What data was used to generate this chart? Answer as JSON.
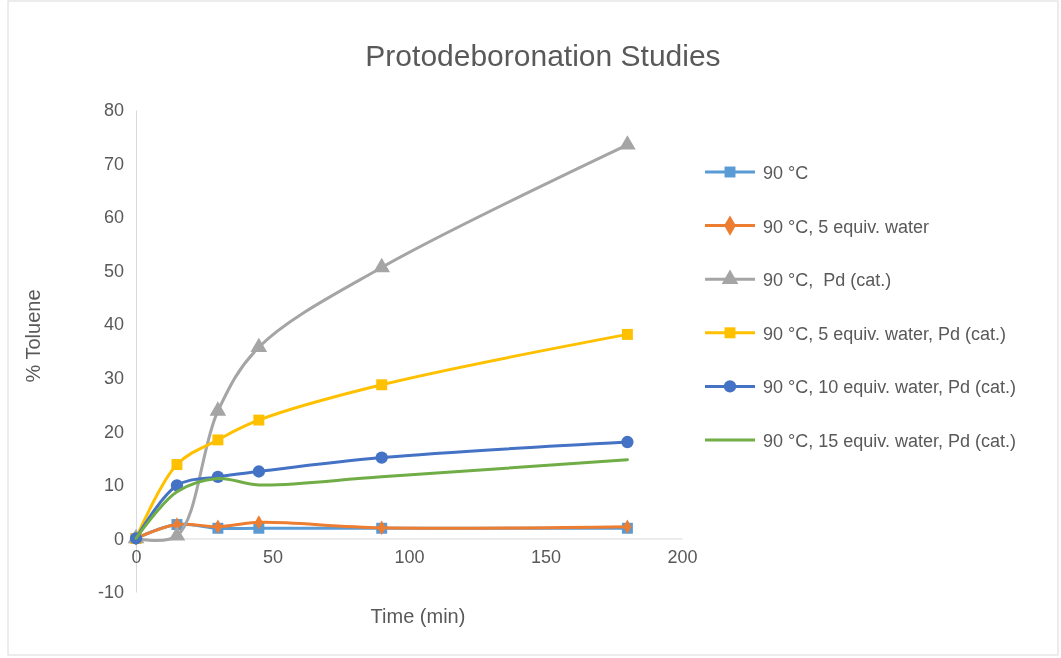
{
  "chart_data": {
    "type": "line",
    "title": "Protodeboronation Studies",
    "xlabel": "Time (min)",
    "ylabel": "% Toluene",
    "x": [
      0,
      15,
      30,
      45,
      90,
      180
    ],
    "xlim": [
      0,
      200
    ],
    "xticks": [
      0,
      50,
      100,
      150,
      200
    ],
    "ylim": [
      -10,
      80
    ],
    "yticks": [
      -10,
      0,
      10,
      20,
      30,
      40,
      50,
      60,
      70,
      80
    ],
    "grid": false,
    "legend": "right",
    "line_style": "solid",
    "series": [
      {
        "name": "90 °C",
        "color": "#5b9bd5",
        "marker": "square",
        "values": [
          0,
          2.6,
          1.9,
          1.9,
          1.9,
          1.9
        ]
      },
      {
        "name": "90 °C, 5 equiv. water",
        "color": "#ed7d31",
        "marker": "diamond",
        "values": [
          0,
          2.6,
          2.2,
          3.0,
          2.0,
          2.2
        ]
      },
      {
        "name": "90 °C,  Pd (cat.)",
        "color": "#a5a5a5",
        "marker": "triangle",
        "values": [
          0,
          0.5,
          23.8,
          35.7,
          50.6,
          73.5
        ]
      },
      {
        "name": "90 °C, 5 equiv. water, Pd (cat.)",
        "color": "#ffc000",
        "marker": "square",
        "values": [
          0,
          13.8,
          18.4,
          22.1,
          28.7,
          38.1
        ]
      },
      {
        "name": "90 °C, 10 equiv. water, Pd (cat.)",
        "color": "#4472c4",
        "marker": "circle",
        "values": [
          0,
          9.9,
          11.5,
          12.5,
          15.1,
          18.0
        ]
      },
      {
        "name": "90 °C, 15 equiv. water, Pd (cat.)",
        "color": "#70ad47",
        "marker": "none",
        "values": [
          0,
          8.7,
          11.2,
          10.0,
          11.5,
          14.7
        ]
      }
    ]
  }
}
